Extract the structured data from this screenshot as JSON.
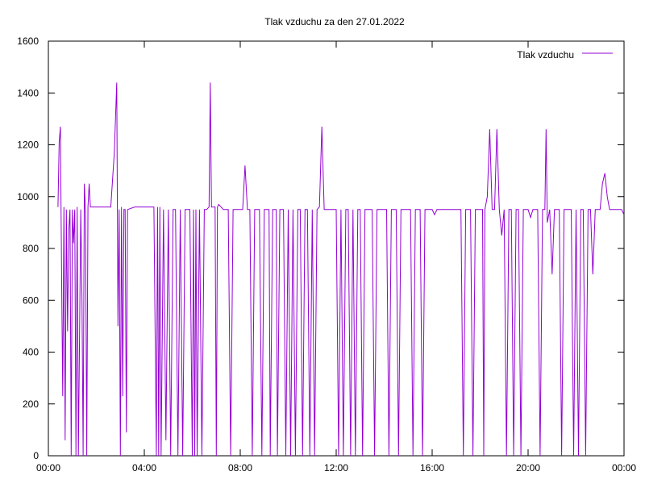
{
  "chart_data": {
    "type": "line",
    "title": "Tlak vzduchu za den 27.01.2022",
    "xlabel": "",
    "ylabel": "",
    "xlim_hours": [
      0,
      24
    ],
    "ylim": [
      0,
      1600
    ],
    "x_ticks": [
      "00:00",
      "04:00",
      "08:00",
      "12:00",
      "16:00",
      "20:00",
      "00:00"
    ],
    "y_ticks": [
      "0",
      "200",
      "400",
      "600",
      "800",
      "1000",
      "1200",
      "1400",
      "1600"
    ],
    "grid": false,
    "legend_position": "top-right",
    "series": [
      {
        "name": "Tlak vzduchu",
        "color": "#9400d3",
        "points": [
          [
            0.4,
            960
          ],
          [
            0.45,
            1210
          ],
          [
            0.5,
            1270
          ],
          [
            0.55,
            700
          ],
          [
            0.6,
            230
          ],
          [
            0.65,
            960
          ],
          [
            0.7,
            60
          ],
          [
            0.75,
            950
          ],
          [
            0.8,
            480
          ],
          [
            0.85,
            870
          ],
          [
            0.9,
            950
          ],
          [
            0.95,
            0
          ],
          [
            1.0,
            950
          ],
          [
            1.05,
            820
          ],
          [
            1.1,
            950
          ],
          [
            1.15,
            0
          ],
          [
            1.2,
            960
          ],
          [
            1.25,
            0
          ],
          [
            1.35,
            950
          ],
          [
            1.4,
            600
          ],
          [
            1.45,
            0
          ],
          [
            1.5,
            1050
          ],
          [
            1.55,
            940
          ],
          [
            1.6,
            0
          ],
          [
            1.65,
            960
          ],
          [
            1.7,
            1050
          ],
          [
            1.75,
            960
          ],
          [
            2.0,
            960
          ],
          [
            2.3,
            960
          ],
          [
            2.6,
            960
          ],
          [
            2.75,
            1170
          ],
          [
            2.85,
            1440
          ],
          [
            2.9,
            500
          ],
          [
            2.95,
            950
          ],
          [
            3.0,
            0
          ],
          [
            3.05,
            960
          ],
          [
            3.1,
            230
          ],
          [
            3.15,
            950
          ],
          [
            3.2,
            950
          ],
          [
            3.25,
            90
          ],
          [
            3.3,
            950
          ],
          [
            3.6,
            960
          ],
          [
            4.0,
            960
          ],
          [
            4.3,
            960
          ],
          [
            4.4,
            960
          ],
          [
            4.45,
            480
          ],
          [
            4.5,
            0
          ],
          [
            4.55,
            960
          ],
          [
            4.6,
            0
          ],
          [
            4.65,
            960
          ],
          [
            4.7,
            0
          ],
          [
            4.8,
            950
          ],
          [
            4.9,
            60
          ],
          [
            5.0,
            950
          ],
          [
            5.1,
            0
          ],
          [
            5.2,
            950
          ],
          [
            5.3,
            950
          ],
          [
            5.4,
            0
          ],
          [
            5.5,
            950
          ],
          [
            5.6,
            0
          ],
          [
            5.7,
            950
          ],
          [
            5.9,
            950
          ],
          [
            6.0,
            0
          ],
          [
            6.05,
            950
          ],
          [
            6.1,
            0
          ],
          [
            6.15,
            950
          ],
          [
            6.2,
            0
          ],
          [
            6.3,
            950
          ],
          [
            6.4,
            0
          ],
          [
            6.5,
            950
          ],
          [
            6.6,
            950
          ],
          [
            6.7,
            960
          ],
          [
            6.75,
            1440
          ],
          [
            6.8,
            960
          ],
          [
            6.9,
            960
          ],
          [
            6.95,
            960
          ],
          [
            7.0,
            0
          ],
          [
            7.05,
            960
          ],
          [
            7.1,
            970
          ],
          [
            7.3,
            950
          ],
          [
            7.5,
            950
          ],
          [
            7.6,
            0
          ],
          [
            7.7,
            950
          ],
          [
            8.0,
            950
          ],
          [
            8.1,
            950
          ],
          [
            8.2,
            1120
          ],
          [
            8.3,
            950
          ],
          [
            8.4,
            950
          ],
          [
            8.5,
            0
          ],
          [
            8.6,
            950
          ],
          [
            8.8,
            950
          ],
          [
            8.9,
            0
          ],
          [
            9.0,
            950
          ],
          [
            9.2,
            950
          ],
          [
            9.25,
            0
          ],
          [
            9.35,
            950
          ],
          [
            9.5,
            950
          ],
          [
            9.55,
            0
          ],
          [
            9.65,
            950
          ],
          [
            9.8,
            950
          ],
          [
            9.9,
            0
          ],
          [
            10.0,
            950
          ],
          [
            10.1,
            0
          ],
          [
            10.2,
            950
          ],
          [
            10.3,
            0
          ],
          [
            10.4,
            950
          ],
          [
            10.5,
            950
          ],
          [
            10.6,
            0
          ],
          [
            10.7,
            950
          ],
          [
            10.8,
            950
          ],
          [
            10.9,
            0
          ],
          [
            11.0,
            950
          ],
          [
            11.1,
            0
          ],
          [
            11.2,
            950
          ],
          [
            11.3,
            960
          ],
          [
            11.4,
            1270
          ],
          [
            11.5,
            950
          ],
          [
            11.6,
            950
          ],
          [
            11.7,
            950
          ],
          [
            11.8,
            950
          ],
          [
            11.9,
            950
          ],
          [
            12.0,
            950
          ],
          [
            12.1,
            0
          ],
          [
            12.2,
            950
          ],
          [
            12.3,
            0
          ],
          [
            12.4,
            950
          ],
          [
            12.5,
            950
          ],
          [
            12.6,
            0
          ],
          [
            12.7,
            950
          ],
          [
            12.8,
            0
          ],
          [
            12.9,
            950
          ],
          [
            13.0,
            950
          ],
          [
            13.1,
            0
          ],
          [
            13.2,
            950
          ],
          [
            13.4,
            950
          ],
          [
            13.5,
            950
          ],
          [
            13.6,
            0
          ],
          [
            13.7,
            950
          ],
          [
            14.0,
            950
          ],
          [
            14.1,
            950
          ],
          [
            14.2,
            0
          ],
          [
            14.3,
            950
          ],
          [
            14.4,
            950
          ],
          [
            14.5,
            950
          ],
          [
            14.6,
            0
          ],
          [
            14.7,
            950
          ],
          [
            15.0,
            950
          ],
          [
            15.1,
            950
          ],
          [
            15.2,
            0
          ],
          [
            15.3,
            950
          ],
          [
            15.5,
            950
          ],
          [
            15.6,
            0
          ],
          [
            15.7,
            950
          ],
          [
            15.9,
            950
          ],
          [
            16.0,
            950
          ],
          [
            16.1,
            930
          ],
          [
            16.2,
            950
          ],
          [
            16.5,
            950
          ],
          [
            16.6,
            950
          ],
          [
            16.7,
            950
          ],
          [
            16.8,
            950
          ],
          [
            16.9,
            950
          ],
          [
            17.0,
            950
          ],
          [
            17.2,
            950
          ],
          [
            17.3,
            0
          ],
          [
            17.4,
            950
          ],
          [
            17.6,
            950
          ],
          [
            17.7,
            0
          ],
          [
            17.8,
            950
          ],
          [
            17.9,
            950
          ],
          [
            18.0,
            950
          ],
          [
            18.1,
            950
          ],
          [
            18.15,
            0
          ],
          [
            18.2,
            950
          ],
          [
            18.3,
            1000
          ],
          [
            18.4,
            1260
          ],
          [
            18.5,
            950
          ],
          [
            18.6,
            950
          ],
          [
            18.7,
            1260
          ],
          [
            18.8,
            950
          ],
          [
            18.9,
            850
          ],
          [
            19.0,
            950
          ],
          [
            19.1,
            0
          ],
          [
            19.2,
            950
          ],
          [
            19.3,
            950
          ],
          [
            19.4,
            0
          ],
          [
            19.5,
            950
          ],
          [
            19.6,
            950
          ],
          [
            19.7,
            0
          ],
          [
            19.8,
            950
          ],
          [
            20.0,
            950
          ],
          [
            20.1,
            920
          ],
          [
            20.2,
            950
          ],
          [
            20.4,
            950
          ],
          [
            20.5,
            0
          ],
          [
            20.6,
            950
          ],
          [
            20.7,
            950
          ],
          [
            20.75,
            1260
          ],
          [
            20.8,
            900
          ],
          [
            20.9,
            950
          ],
          [
            21.0,
            700
          ],
          [
            21.1,
            950
          ],
          [
            21.3,
            950
          ],
          [
            21.4,
            0
          ],
          [
            21.5,
            950
          ],
          [
            21.7,
            950
          ],
          [
            21.8,
            950
          ],
          [
            21.9,
            0
          ],
          [
            22.0,
            950
          ],
          [
            22.1,
            0
          ],
          [
            22.2,
            950
          ],
          [
            22.3,
            950
          ],
          [
            22.4,
            0
          ],
          [
            22.5,
            950
          ],
          [
            22.6,
            950
          ],
          [
            22.7,
            700
          ],
          [
            22.8,
            950
          ],
          [
            22.9,
            950
          ],
          [
            23.0,
            950
          ],
          [
            23.1,
            1050
          ],
          [
            23.2,
            1090
          ],
          [
            23.3,
            1000
          ],
          [
            23.4,
            950
          ],
          [
            23.5,
            950
          ],
          [
            23.6,
            950
          ],
          [
            23.7,
            950
          ],
          [
            23.8,
            950
          ],
          [
            23.9,
            950
          ],
          [
            24.0,
            930
          ]
        ]
      }
    ]
  }
}
